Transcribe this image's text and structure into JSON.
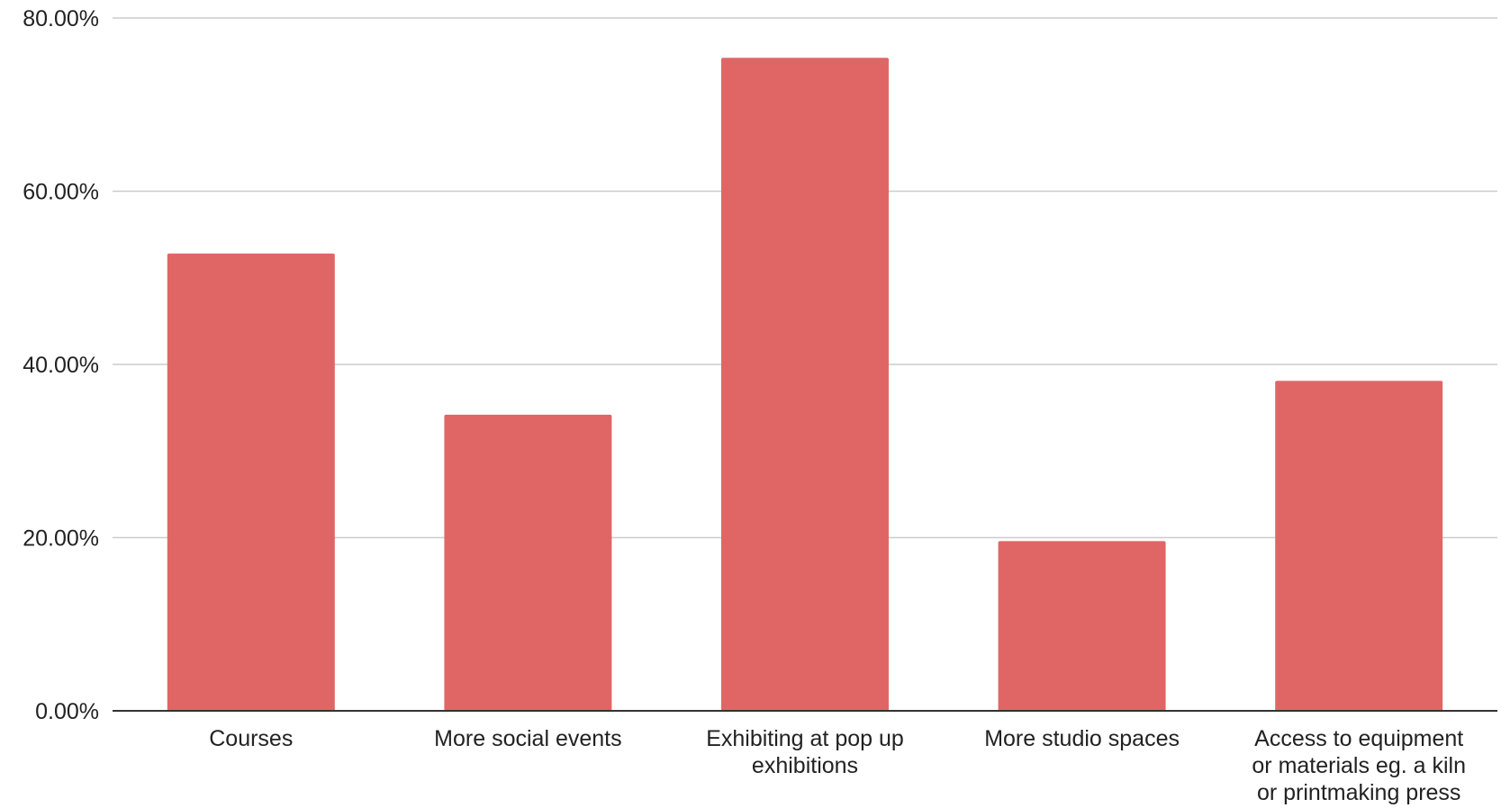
{
  "chart_data": {
    "type": "bar",
    "categories": [
      [
        "Courses"
      ],
      [
        "More social events"
      ],
      [
        "Exhibiting at pop up",
        "exhibitions"
      ],
      [
        "More studio spaces"
      ],
      [
        "Access to equipment",
        "or materials eg. a kiln",
        "or printmaking press"
      ]
    ],
    "values": [
      52.8,
      34.2,
      75.4,
      19.6,
      38.1
    ],
    "ylim": [
      0,
      80
    ],
    "yticks": [
      0,
      20,
      40,
      60,
      80
    ],
    "ytick_labels": [
      "0.00%",
      "20.00%",
      "40.00%",
      "60.00%",
      "80.00%"
    ],
    "title": "",
    "xlabel": "",
    "ylabel": "",
    "grid": true,
    "legend": "none",
    "bar_color": "#e06666",
    "grid_color": "#cccccc",
    "axis_color": "#333333"
  }
}
